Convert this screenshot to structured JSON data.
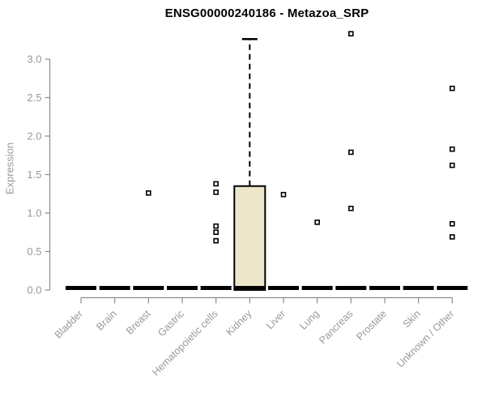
{
  "title": "ENSG00000240186 - Metazoa_SRP",
  "colors": {
    "background": "#ffffff",
    "title": "#000000",
    "axis_line": "#8c8c8c",
    "tick_label": "#999999",
    "box_fill": "#ece7cb",
    "box_stroke": "#000000",
    "median": "#000000",
    "whisker": "#000000",
    "outlier_stroke": "#000000",
    "outlier_fill": "#ffffff"
  },
  "chart_data": {
    "type": "boxplot",
    "title": "ENSG00000240186 - Metazoa_SRP",
    "xlabel": "",
    "ylabel": "Expression",
    "ylim": [
      0,
      3.4
    ],
    "yticks": [
      "0.0",
      "0.5",
      "1.0",
      "1.5",
      "2.0",
      "2.5",
      "3.0"
    ],
    "grid": false,
    "legend": false,
    "categories": [
      "Bladder",
      "Brain",
      "Breast",
      "Gastric",
      "Hematopoietic cells",
      "Kidney",
      "Liver",
      "Lung",
      "Pancreas",
      "Prostate",
      "Skin",
      "Unknown / Other"
    ],
    "series": [
      {
        "category": "Bladder",
        "q1": 0,
        "median": 0,
        "q3": 0,
        "whisker_low": 0,
        "whisker_high": 0,
        "outliers": []
      },
      {
        "category": "Brain",
        "q1": 0,
        "median": 0,
        "q3": 0,
        "whisker_low": 0,
        "whisker_high": 0,
        "outliers": []
      },
      {
        "category": "Breast",
        "q1": 0,
        "median": 0,
        "q3": 0,
        "whisker_low": 0,
        "whisker_high": 0,
        "outliers": [
          1.26
        ]
      },
      {
        "category": "Gastric",
        "q1": 0,
        "median": 0,
        "q3": 0,
        "whisker_low": 0,
        "whisker_high": 0,
        "outliers": []
      },
      {
        "category": "Hematopoietic cells",
        "q1": 0,
        "median": 0,
        "q3": 0,
        "whisker_low": 0,
        "whisker_high": 0,
        "outliers": [
          1.38,
          1.27,
          0.83,
          0.75,
          0.64
        ]
      },
      {
        "category": "Kidney",
        "q1": 0,
        "median": 0,
        "q3": 1.35,
        "whisker_low": 0,
        "whisker_high": 3.26,
        "outliers": []
      },
      {
        "category": "Liver",
        "q1": 0,
        "median": 0,
        "q3": 0,
        "whisker_low": 0,
        "whisker_high": 0,
        "outliers": [
          1.24
        ]
      },
      {
        "category": "Lung",
        "q1": 0,
        "median": 0,
        "q3": 0,
        "whisker_low": 0,
        "whisker_high": 0,
        "outliers": [
          0.88
        ]
      },
      {
        "category": "Pancreas",
        "q1": 0,
        "median": 0,
        "q3": 0,
        "whisker_low": 0,
        "whisker_high": 0,
        "outliers": [
          3.33,
          1.79,
          1.06
        ]
      },
      {
        "category": "Prostate",
        "q1": 0,
        "median": 0,
        "q3": 0,
        "whisker_low": 0,
        "whisker_high": 0,
        "outliers": []
      },
      {
        "category": "Skin",
        "q1": 0,
        "median": 0,
        "q3": 0,
        "whisker_low": 0,
        "whisker_high": 0,
        "outliers": []
      },
      {
        "category": "Unknown / Other",
        "q1": 0,
        "median": 0,
        "q3": 0,
        "whisker_low": 0,
        "whisker_high": 0,
        "outliers": [
          2.62,
          1.83,
          1.62,
          0.86,
          0.69
        ]
      }
    ]
  }
}
